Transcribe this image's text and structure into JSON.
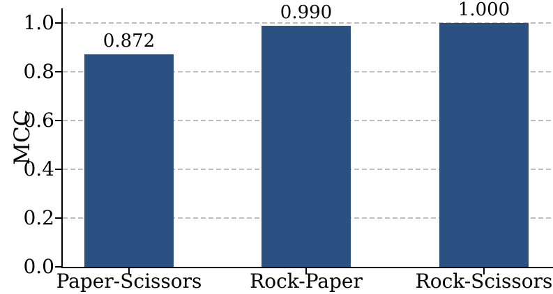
{
  "chart_data": {
    "type": "bar",
    "title": "",
    "categories": [
      "Paper-Scissors",
      "Rock-Paper",
      "Rock-Scissors"
    ],
    "values": [
      0.872,
      0.99,
      1.0
    ],
    "value_labels": [
      "0.872",
      "0.990",
      "1.000"
    ],
    "xlabel": "",
    "ylabel": "MCC",
    "yticks": [
      "0.0",
      "0.2",
      "0.4",
      "0.6",
      "0.8",
      "1.0"
    ],
    "ytick_values": [
      0.0,
      0.2,
      0.4,
      0.6,
      0.8,
      1.0
    ],
    "ylim": [
      0.0,
      1.06
    ],
    "grid": "horizontal-dashed",
    "legend": "none",
    "bar_color": "#2b5183",
    "grid_color": "#bcbcbc",
    "axis_color": "#000000",
    "text_color": "#000000"
  }
}
